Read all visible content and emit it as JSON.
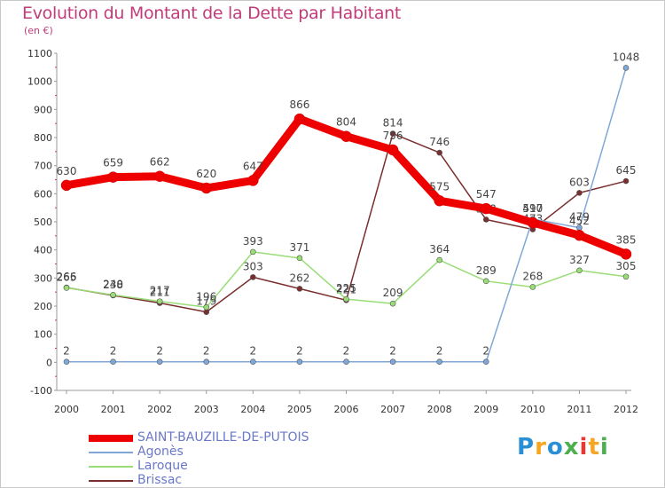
{
  "title": "Evolution du Montant de la Dette par Habitant",
  "subtitle": "(en €)",
  "logo": {
    "text": "Proxiti",
    "colors": [
      "#2b8fd6",
      "#f5a623",
      "#2b8fd6",
      "#4caf50",
      "#e53935",
      "#f5a623",
      "#4caf50"
    ]
  },
  "chart_data": {
    "type": "line",
    "title": "Evolution du Montant de la Dette par Habitant",
    "subtitle": "(en €)",
    "x": [
      "2000",
      "2001",
      "2002",
      "2003",
      "2004",
      "2005",
      "2006",
      "2007",
      "2008",
      "2009",
      "2010",
      "2011",
      "2012"
    ],
    "ylim": [
      -100,
      1100
    ],
    "yticks": [
      -100,
      0,
      100,
      200,
      300,
      400,
      500,
      600,
      700,
      800,
      900,
      1000,
      1100
    ],
    "grid": false,
    "legend": "bottom-left",
    "series": [
      {
        "name": "SAINT-BAUZILLE-DE-PUTOIS",
        "color": "#ee0000",
        "values": [
          630,
          659,
          662,
          620,
          647,
          866,
          804,
          756,
          575,
          547,
          497,
          452,
          385
        ]
      },
      {
        "name": "Agonès",
        "color": "#7fa8d8",
        "values": [
          2,
          2,
          2,
          2,
          2,
          2,
          2,
          2,
          2,
          2,
          510,
          479,
          1048
        ]
      },
      {
        "name": "Laroque",
        "color": "#99dd77",
        "values": [
          265,
          240,
          217,
          196,
          393,
          371,
          225,
          209,
          364,
          289,
          268,
          327,
          305
        ]
      },
      {
        "name": "Brissac",
        "color": "#7a2e2e",
        "values": [
          266,
          238,
          211,
          179,
          303,
          262,
          221,
          814,
          746,
          508,
          473,
          603,
          645
        ]
      }
    ]
  }
}
